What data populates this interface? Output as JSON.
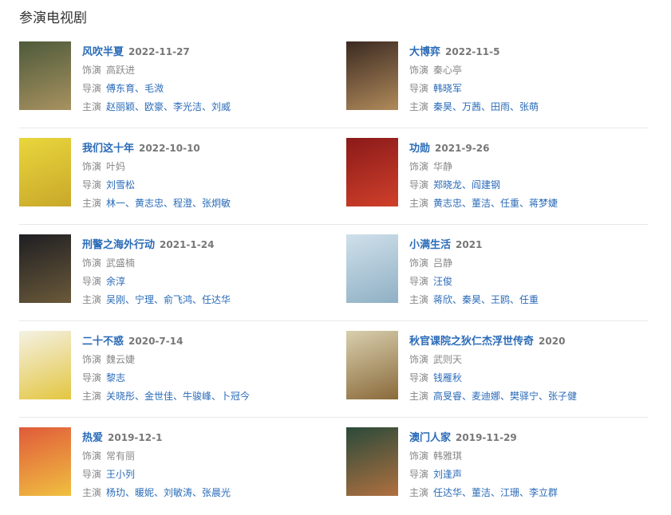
{
  "header": {
    "title": "参演电视剧"
  },
  "labels": {
    "role": "饰演",
    "director": "导演",
    "cast": "主演"
  },
  "items": [
    {
      "title": "风吹半夏",
      "date": "2022-11-27",
      "role": "高跃进",
      "director": "傅东育、毛溦",
      "cast": "赵丽颖、欧豪、李光洁、刘威"
    },
    {
      "title": "大博弈",
      "date": "2022-11-5",
      "role": "秦心亭",
      "director": "韩晓军",
      "cast": "秦昊、万茜、田雨、张萌"
    },
    {
      "title": "我们这十年",
      "date": "2022-10-10",
      "role": "叶妈",
      "director": "刘雪松",
      "cast": "林一、黄志忠、程澄、张炯敏"
    },
    {
      "title": "功勋",
      "date": "2021-9-26",
      "role": "华静",
      "director": "郑晓龙、阎建钢",
      "cast": "黄志忠、董洁、任重、蒋梦婕"
    },
    {
      "title": "刑警之海外行动",
      "date": "2021-1-24",
      "role": "武盛楠",
      "director": "余淳",
      "cast": "吴刚、宁理、俞飞鸿、任达华"
    },
    {
      "title": "小满生活",
      "date": "2021",
      "role": "吕静",
      "director": "汪俊",
      "cast": "蒋欣、秦昊、王鸥、任重"
    },
    {
      "title": "二十不惑",
      "date": "2020-7-14",
      "role": "魏云婕",
      "director": "黎志",
      "cast": "关晓彤、金世佳、牛骏峰、卜冠今"
    },
    {
      "title": "秋官课院之狄仁杰浮世传奇",
      "date": "2020",
      "role": "武则天",
      "director": "钱雁秋",
      "cast": "高旻睿、麦迪娜、樊驿宁、张子健"
    },
    {
      "title": "热爱",
      "date": "2019-12-1",
      "role": "常有丽",
      "director": "王小列",
      "cast": "杨玏、暖妮、刘敏涛、张晨光"
    },
    {
      "title": "澳门人家",
      "date": "2019-11-29",
      "role": "韩雅琪",
      "director": "刘逢声",
      "cast": "任达华、董洁、江珊、李立群"
    }
  ]
}
